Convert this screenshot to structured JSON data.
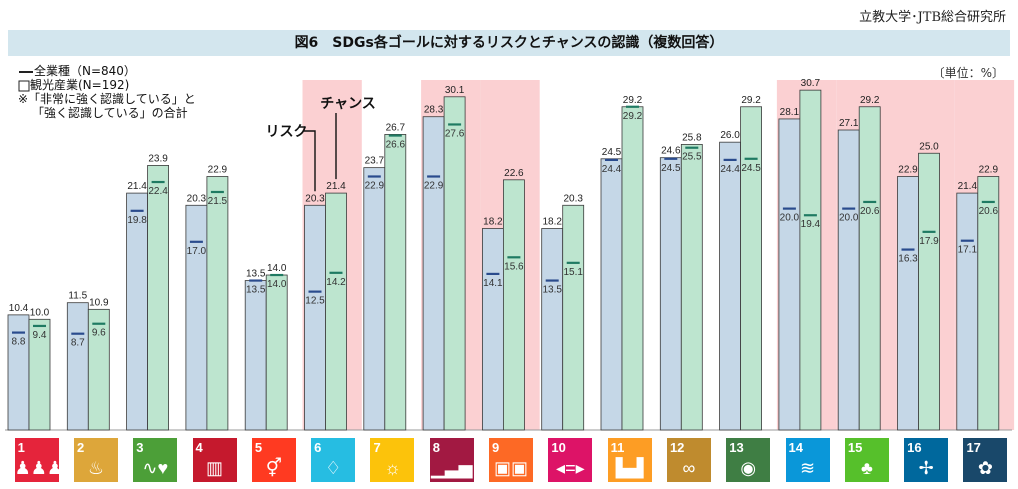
{
  "source": "立教大学･JTB総合研究所",
  "title": "図6　SDGs各ゴールに対するリスクとチャンスの認識（複数回答）",
  "legend": {
    "all": "全業種（N=840）",
    "tourism": "観光産業(N=192)",
    "note1": "※「非常に強く認識している」と",
    "note2": "「強く認識している」の合計"
  },
  "unit": "〔単位：%〕",
  "annotations": {
    "risk": "リスク",
    "chance": "チャンス"
  },
  "colors": {
    "risk_bar": "#c5d7e7",
    "chance_bar": "#bde5cf",
    "highlight": "#fbd0d2",
    "risk_marker": "#2a4b8d",
    "chance_marker": "#1f7a62"
  },
  "highlight_goals": [
    6,
    8,
    9,
    14,
    15,
    16,
    17
  ],
  "chart_data": {
    "type": "bar",
    "categories": [
      "1",
      "2",
      "3",
      "4",
      "5",
      "6",
      "7",
      "8",
      "9",
      "10",
      "11",
      "12",
      "13",
      "14",
      "15",
      "16",
      "17"
    ],
    "ylim": [
      0,
      35
    ],
    "series": [
      {
        "name": "リスク",
        "group": "観光産業",
        "values": [
          10.4,
          11.5,
          21.4,
          20.3,
          13.5,
          20.3,
          23.7,
          28.3,
          18.2,
          18.2,
          24.5,
          24.6,
          26.0,
          28.1,
          27.1,
          22.9,
          21.4
        ]
      },
      {
        "name": "チャンス",
        "group": "観光産業",
        "values": [
          10.0,
          10.9,
          23.9,
          22.9,
          14.0,
          21.4,
          26.7,
          30.1,
          22.6,
          20.3,
          29.2,
          25.8,
          29.2,
          30.7,
          29.2,
          25.0,
          22.9
        ]
      },
      {
        "name": "リスク",
        "group": "全業種",
        "values": [
          8.8,
          8.7,
          19.8,
          17.0,
          13.5,
          12.5,
          22.9,
          22.9,
          14.1,
          13.5,
          24.4,
          24.5,
          24.4,
          20.0,
          20.0,
          16.3,
          17.1
        ]
      },
      {
        "name": "チャンス",
        "group": "全業種",
        "values": [
          9.4,
          9.6,
          22.4,
          21.5,
          14.0,
          14.2,
          26.6,
          27.6,
          15.6,
          15.1,
          29.2,
          25.5,
          24.5,
          19.4,
          20.6,
          17.9,
          20.6
        ]
      }
    ]
  },
  "goals": [
    {
      "n": "1",
      "color": "#e5243b",
      "icon": "people-icon",
      "glyph": "♟♟♟"
    },
    {
      "n": "2",
      "color": "#dda63a",
      "icon": "bowl-icon",
      "glyph": "♨"
    },
    {
      "n": "3",
      "color": "#4c9f38",
      "icon": "heartbeat-icon",
      "glyph": "∿♥"
    },
    {
      "n": "4",
      "color": "#c5192d",
      "icon": "book-icon",
      "glyph": "▥"
    },
    {
      "n": "5",
      "color": "#ff3a21",
      "icon": "gender-icon",
      "glyph": "⚥"
    },
    {
      "n": "6",
      "color": "#26bde2",
      "icon": "water-drop-icon",
      "glyph": "♢"
    },
    {
      "n": "7",
      "color": "#fcc30b",
      "icon": "sun-icon",
      "glyph": "☼"
    },
    {
      "n": "8",
      "color": "#a21942",
      "icon": "growth-chart-icon",
      "glyph": "▁▃▅"
    },
    {
      "n": "9",
      "color": "#fd6925",
      "icon": "cubes-icon",
      "glyph": "▣▣"
    },
    {
      "n": "10",
      "color": "#dd1367",
      "icon": "equality-icon",
      "glyph": "◂=▸"
    },
    {
      "n": "11",
      "color": "#fd9d24",
      "icon": "city-icon",
      "glyph": "▙▟"
    },
    {
      "n": "12",
      "color": "#bf8b2e",
      "icon": "infinity-icon",
      "glyph": "∞"
    },
    {
      "n": "13",
      "color": "#3f7e44",
      "icon": "eye-earth-icon",
      "glyph": "◉"
    },
    {
      "n": "14",
      "color": "#0a97d9",
      "icon": "fish-icon",
      "glyph": "≋"
    },
    {
      "n": "15",
      "color": "#56c02b",
      "icon": "tree-icon",
      "glyph": "♣"
    },
    {
      "n": "16",
      "color": "#00689d",
      "icon": "dove-icon",
      "glyph": "✢"
    },
    {
      "n": "17",
      "color": "#19486a",
      "icon": "rings-icon",
      "glyph": "✿"
    }
  ]
}
